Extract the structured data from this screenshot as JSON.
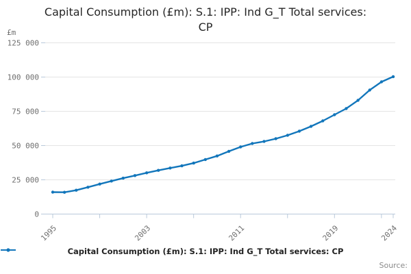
{
  "header": {
    "title_line1": "Capital Consumption (£m): S.1: IPP: Ind G_T Total services:",
    "title_line2": "CP",
    "y_unit_label": "£m"
  },
  "legend": {
    "label": "Capital Consumption (£m): S.1: IPP: Ind G_T Total services: CP"
  },
  "source_label": "Source:",
  "colors": {
    "line": "#1276bb",
    "grid": "#e4e4e4",
    "axis": "#b9c9da",
    "tick_label": "#6e6e6e",
    "title": "#262626"
  },
  "chart_data": {
    "type": "line",
    "title": "Capital Consumption (£m): S.1: IPP: Ind G_T Total services: CP",
    "xlabel": "",
    "ylabel": "£m",
    "ylim": [
      0,
      125000
    ],
    "yticks": [
      0,
      25000,
      50000,
      75000,
      100000,
      125000
    ],
    "xticks": [
      1995,
      1999,
      2003,
      2007,
      2011,
      2015,
      2019,
      2023,
      2024
    ],
    "xtick_label_years": [
      1995,
      2003,
      2011,
      2019,
      2024
    ],
    "grid": "horizontal",
    "legend_position": "bottom",
    "marker": "circle",
    "x": [
      1995,
      1996,
      1997,
      1998,
      1999,
      2000,
      2001,
      2002,
      2003,
      2004,
      2005,
      2006,
      2007,
      2008,
      2009,
      2010,
      2011,
      2012,
      2013,
      2014,
      2015,
      2016,
      2017,
      2018,
      2019,
      2020,
      2021,
      2022,
      2023,
      2024
    ],
    "series": [
      {
        "name": "Capital Consumption (£m): S.1: IPP: Ind G_T Total services: CP",
        "values": [
          16000,
          15900,
          17400,
          19600,
          21900,
          24100,
          26200,
          28100,
          30100,
          31900,
          33600,
          35200,
          37200,
          39800,
          42400,
          45800,
          49000,
          51500,
          53000,
          55000,
          57500,
          60500,
          64000,
          68000,
          72500,
          77000,
          83000,
          90500,
          96500,
          100300
        ]
      }
    ]
  }
}
